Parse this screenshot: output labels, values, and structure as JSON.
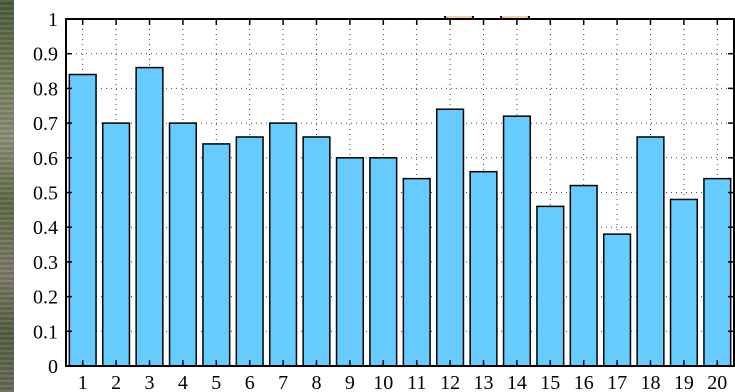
{
  "chart_data": {
    "type": "bar",
    "categories": [
      "1",
      "2",
      "3",
      "4",
      "5",
      "6",
      "7",
      "8",
      "9",
      "10",
      "11",
      "12",
      "13",
      "14",
      "15",
      "16",
      "17",
      "18",
      "19",
      "20"
    ],
    "values": [
      0.84,
      0.7,
      0.86,
      0.7,
      0.64,
      0.66,
      0.7,
      0.66,
      0.6,
      0.6,
      0.54,
      0.74,
      0.56,
      0.72,
      0.46,
      0.52,
      0.38,
      0.66,
      0.48,
      0.54
    ],
    "yticks": [
      "0",
      "0.1",
      "0.2",
      "0.3",
      "0.4",
      "0.5",
      "0.6",
      "0.7",
      "0.8",
      "0.9",
      "1"
    ],
    "ylim": [
      0,
      1
    ],
    "grid": true,
    "bar_color": "#66ccff",
    "bar_edge_color": "#000000",
    "title": "",
    "xlabel": "",
    "ylabel": ""
  }
}
